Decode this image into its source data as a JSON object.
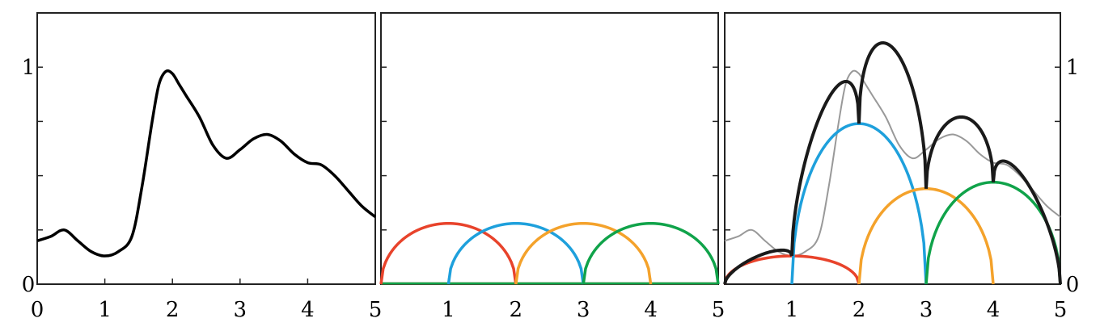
{
  "chart_data": [
    {
      "type": "line",
      "title": "",
      "xlabel": "",
      "ylabel": "",
      "xlim": [
        0,
        5
      ],
      "ylim": [
        0,
        1.25
      ],
      "xticks": [
        0,
        1,
        2,
        3,
        4,
        5
      ],
      "yticks": [
        0,
        1
      ],
      "grid": false,
      "series": [
        {
          "color": "#000000",
          "x": [
            0,
            0.2,
            0.4,
            0.6,
            0.8,
            1.0,
            1.2,
            1.4,
            1.55,
            1.7,
            1.8,
            1.9,
            2.0,
            2.1,
            2.2,
            2.4,
            2.6,
            2.8,
            3.0,
            3.2,
            3.4,
            3.6,
            3.8,
            4.0,
            4.2,
            4.4,
            4.6,
            4.8,
            5.0
          ],
          "y": [
            0.2,
            0.22,
            0.25,
            0.2,
            0.15,
            0.13,
            0.15,
            0.22,
            0.45,
            0.75,
            0.92,
            0.98,
            0.97,
            0.92,
            0.87,
            0.77,
            0.64,
            0.58,
            0.62,
            0.67,
            0.69,
            0.66,
            0.6,
            0.56,
            0.55,
            0.5,
            0.43,
            0.36,
            0.31
          ]
        }
      ]
    },
    {
      "type": "line",
      "title": "",
      "xlabel": "",
      "ylabel": "",
      "xlim": [
        0,
        5
      ],
      "ylim": [
        0,
        1.25
      ],
      "xticks": [
        1,
        2,
        3,
        4,
        5
      ],
      "yticks": [
        0.25,
        0.5,
        0.75,
        1.0
      ],
      "grid": false,
      "series": [
        {
          "color": "#e8432b",
          "center": 1,
          "halfwidth": 1,
          "height": 0.28
        },
        {
          "color": "#1ea0dc",
          "center": 2,
          "halfwidth": 1,
          "height": 0.28
        },
        {
          "color": "#f4a22b",
          "center": 3,
          "halfwidth": 1,
          "height": 0.28
        },
        {
          "color": "#10a34a",
          "center": 4,
          "halfwidth": 1,
          "height": 0.28
        }
      ]
    },
    {
      "type": "line",
      "title": "",
      "xlabel": "",
      "ylabel": "",
      "xlim": [
        0,
        5
      ],
      "ylim": [
        0,
        1.25
      ],
      "xticks": [
        1,
        2,
        3,
        4,
        5
      ],
      "yticks_right": [
        0,
        1
      ],
      "grid": false,
      "series": [
        {
          "color": "#e8432b",
          "center": 1,
          "halfwidth": 1,
          "height": 0.13
        },
        {
          "color": "#1ea0dc",
          "center": 2,
          "halfwidth": 1,
          "height": 0.74
        },
        {
          "color": "#f4a22b",
          "center": 3,
          "halfwidth": 1,
          "height": 0.44
        },
        {
          "color": "#10a34a",
          "center": 4,
          "halfwidth": 1,
          "height": 0.47
        },
        {
          "color": "#1a1a1a",
          "kind": "envelope",
          "x_cusps": [
            0,
            1,
            2,
            3,
            4,
            5
          ],
          "y_cusps": [
            0,
            0.13,
            0.74,
            0.44,
            0.47,
            0
          ],
          "peaks": [
            0.13,
            0.83,
            1.09,
            0.77,
            0.47
          ]
        },
        {
          "color": "#999999",
          "kind": "reference",
          "x": [
            0,
            0.2,
            0.4,
            0.6,
            0.8,
            1.0,
            1.2,
            1.4,
            1.55,
            1.7,
            1.8,
            1.9,
            2.0,
            2.1,
            2.2,
            2.4,
            2.6,
            2.8,
            3.0,
            3.2,
            3.4,
            3.6,
            3.8,
            4.0,
            4.2,
            4.4,
            4.6,
            4.8,
            5.0
          ],
          "y": [
            0.2,
            0.22,
            0.25,
            0.2,
            0.15,
            0.13,
            0.15,
            0.22,
            0.45,
            0.75,
            0.92,
            0.98,
            0.97,
            0.92,
            0.87,
            0.77,
            0.64,
            0.58,
            0.62,
            0.67,
            0.69,
            0.66,
            0.6,
            0.56,
            0.55,
            0.5,
            0.43,
            0.36,
            0.31
          ]
        }
      ]
    }
  ],
  "tick_text": {
    "p1_x": [
      "0",
      "1",
      "2",
      "3",
      "4",
      "5"
    ],
    "p1_y": [
      "0",
      "1"
    ],
    "p2_x": [
      "1",
      "2",
      "3",
      "4",
      "5"
    ],
    "p3_x": [
      "1",
      "2",
      "3",
      "4",
      "5"
    ],
    "p3_y": [
      "0",
      "1"
    ]
  }
}
